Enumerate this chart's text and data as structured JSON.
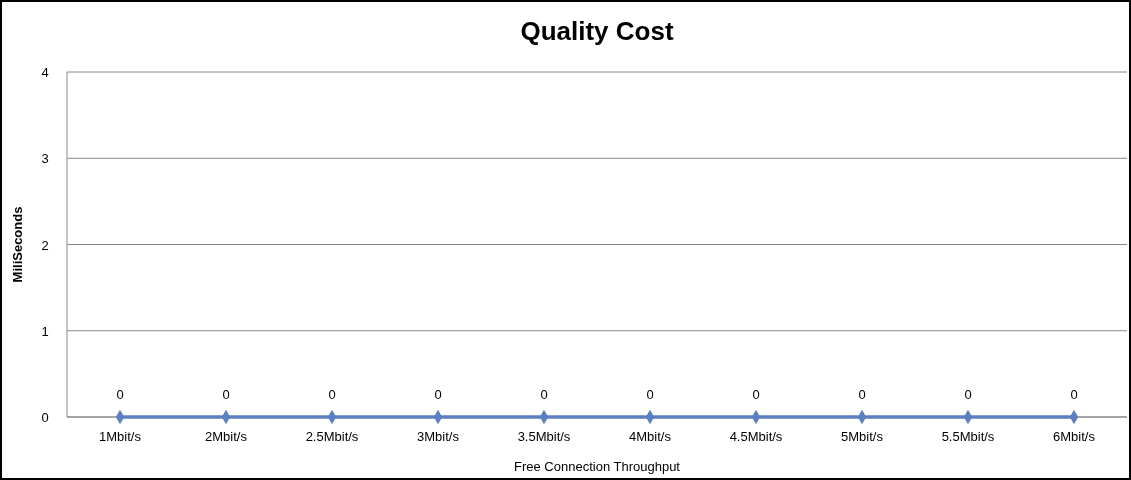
{
  "chart_data": {
    "type": "line",
    "title": "Quality Cost",
    "xlabel": "Free Connection Throughput",
    "ylabel": "MiliSeconds",
    "categories": [
      "1Mbit/s",
      "2Mbit/s",
      "2.5Mbit/s",
      "3Mbit/s",
      "3.5Mbit/s",
      "4Mbit/s",
      "4.5Mbit/s",
      "5Mbit/s",
      "5.5Mbit/s",
      "6Mbit/s"
    ],
    "series": [
      {
        "color": "#5b7fc0",
        "values": [
          0,
          0,
          0,
          0,
          0,
          0,
          0,
          0,
          0,
          0
        ]
      }
    ],
    "ylim": [
      0,
      4
    ],
    "yticks": [
      0,
      1,
      2,
      3,
      4
    ],
    "grid": "y",
    "marker": "diamond",
    "data_labels": true
  }
}
